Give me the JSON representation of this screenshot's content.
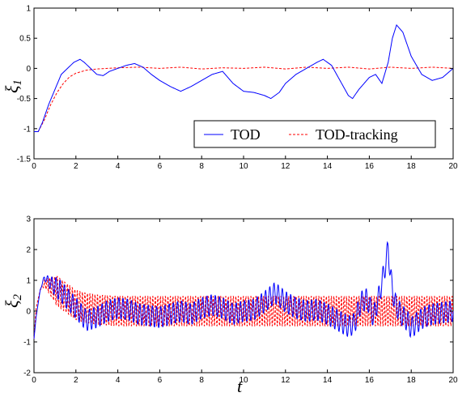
{
  "chart_data": [
    {
      "type": "line",
      "title": "",
      "ylabel_symbol": "ξ",
      "ylabel_sub": "1",
      "xlabel": "",
      "xlim": [
        0,
        20
      ],
      "ylim": [
        -1.5,
        1
      ],
      "xticks": [
        "0",
        "2",
        "4",
        "6",
        "8",
        "10",
        "12",
        "14",
        "16",
        "18",
        "20"
      ],
      "yticks": [
        "-1.5",
        "-1",
        "-0.5",
        "0",
        "0.5",
        "1"
      ],
      "legend": {
        "position": "bottom-right",
        "entries": [
          "TOD",
          "TOD-tracking"
        ]
      },
      "series": [
        {
          "name": "TOD",
          "color": "#0000ff",
          "style": "solid",
          "x": [
            0,
            0.2,
            0.4,
            0.7,
            1.0,
            1.3,
            1.6,
            1.9,
            2.2,
            2.4,
            2.7,
            3.0,
            3.3,
            3.6,
            4.0,
            4.4,
            4.8,
            5.2,
            5.6,
            6.0,
            6.5,
            7.0,
            7.5,
            8.0,
            8.5,
            9.0,
            9.5,
            10.0,
            10.5,
            11.0,
            11.3,
            11.7,
            12.0,
            12.5,
            13.0,
            13.5,
            13.8,
            14.2,
            14.6,
            15.0,
            15.2,
            15.5,
            16.0,
            16.3,
            16.6,
            16.9,
            17.1,
            17.3,
            17.6,
            18.0,
            18.5,
            19.0,
            19.5,
            20.0
          ],
          "y": [
            -1.05,
            -1.05,
            -0.9,
            -0.6,
            -0.35,
            -0.1,
            0.0,
            0.1,
            0.15,
            0.1,
            0.0,
            -0.1,
            -0.12,
            -0.05,
            0.0,
            0.05,
            0.08,
            0.02,
            -0.1,
            -0.2,
            -0.3,
            -0.38,
            -0.3,
            -0.2,
            -0.1,
            -0.05,
            -0.25,
            -0.38,
            -0.4,
            -0.45,
            -0.5,
            -0.4,
            -0.25,
            -0.1,
            0.0,
            0.1,
            0.15,
            0.05,
            -0.2,
            -0.45,
            -0.5,
            -0.35,
            -0.15,
            -0.1,
            -0.25,
            0.1,
            0.5,
            0.72,
            0.6,
            0.2,
            -0.1,
            -0.2,
            -0.15,
            0.0
          ]
        },
        {
          "name": "TOD-tracking",
          "color": "#ff0000",
          "style": "dashed",
          "x": [
            0,
            0.2,
            0.5,
            0.8,
            1.1,
            1.4,
            1.7,
            2.0,
            2.5,
            3.0,
            3.5,
            4.0,
            5,
            6,
            7,
            8,
            9,
            10,
            11,
            12,
            13,
            14,
            15,
            16,
            17,
            18,
            19,
            20
          ],
          "y": [
            -1.05,
            -1.05,
            -0.85,
            -0.6,
            -0.4,
            -0.25,
            -0.14,
            -0.08,
            -0.03,
            -0.01,
            0.0,
            0.01,
            0.02,
            0.0,
            0.02,
            -0.01,
            0.01,
            0.0,
            0.02,
            -0.01,
            0.02,
            0.0,
            0.02,
            -0.01,
            0.02,
            0.0,
            0.02,
            0.0
          ]
        }
      ]
    },
    {
      "type": "line",
      "title": "",
      "ylabel_symbol": "ξ",
      "ylabel_sub": "2",
      "xlabel": "t",
      "xlim": [
        0,
        20
      ],
      "ylim": [
        -2,
        3
      ],
      "xticks": [
        "0",
        "2",
        "4",
        "6",
        "8",
        "10",
        "12",
        "14",
        "16",
        "18",
        "20"
      ],
      "yticks": [
        "-2",
        "-1",
        "0",
        "1",
        "2",
        "3"
      ],
      "series": [
        {
          "name": "TOD",
          "color": "#0000ff",
          "style": "solid",
          "oscillation_amplitude": 0.35,
          "oscillation_period": 0.2,
          "x": [
            0,
            0.1,
            0.3,
            0.5,
            0.8,
            1.2,
            1.6,
            2.0,
            2.5,
            3.0,
            3.5,
            4.0,
            4.5,
            5.0,
            5.5,
            6.0,
            6.5,
            7.0,
            7.5,
            8.0,
            8.5,
            9.0,
            9.5,
            10.0,
            10.5,
            11.0,
            11.5,
            12.0,
            12.5,
            13.0,
            13.5,
            14.0,
            14.5,
            15.0,
            15.3,
            15.6,
            15.9,
            16.2,
            16.5,
            16.8,
            16.9,
            17.0,
            17.2,
            17.5,
            17.8,
            18.0,
            18.3,
            18.6,
            19.0,
            19.5,
            20.0
          ],
          "y": [
            -0.9,
            -0.2,
            0.7,
            1.1,
            0.9,
            0.7,
            0.4,
            0.1,
            -0.3,
            -0.2,
            0.0,
            0.1,
            0.05,
            -0.1,
            -0.15,
            -0.2,
            -0.1,
            0.0,
            -0.1,
            0.1,
            0.2,
            0.1,
            -0.1,
            0.0,
            0.05,
            0.3,
            0.6,
            0.3,
            0.1,
            0.0,
            0.05,
            -0.1,
            -0.3,
            -0.5,
            -0.4,
            0.3,
            0.4,
            -0.2,
            0.6,
            1.6,
            2.1,
            1.2,
            0.3,
            -0.1,
            -0.3,
            -0.55,
            -0.35,
            -0.2,
            -0.1,
            -0.05,
            0.0
          ]
        },
        {
          "name": "TOD-tracking",
          "color": "#ff0000",
          "style": "dashed",
          "oscillation_amplitude": 0.5,
          "oscillation_period": 0.12,
          "x": [
            0,
            0.1,
            0.3,
            0.5,
            0.8,
            1.2,
            1.6,
            2.0,
            2.5,
            3.0,
            4.0,
            6.0,
            8.0,
            10.0,
            12.0,
            14.0,
            16.0,
            18.0,
            20.0
          ],
          "y": [
            -0.9,
            0.1,
            0.7,
            0.9,
            0.8,
            0.6,
            0.4,
            0.2,
            0.1,
            0.05,
            0.0,
            0.0,
            0.0,
            0.0,
            0.0,
            0.0,
            0.0,
            0.0,
            0.0
          ]
        }
      ]
    }
  ]
}
